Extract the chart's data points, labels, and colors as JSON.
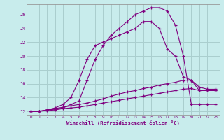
{
  "background_color": "#c8ecec",
  "grid_color": "#aacece",
  "line_color": "#800080",
  "xlim": [
    -0.5,
    23.5
  ],
  "ylim": [
    11.5,
    27.5
  ],
  "xlabel": "Windchill (Refroidissement éolien,°C)",
  "yticks": [
    12,
    14,
    16,
    18,
    20,
    22,
    24,
    26
  ],
  "xticks": [
    0,
    1,
    2,
    3,
    4,
    5,
    6,
    7,
    8,
    9,
    10,
    11,
    12,
    13,
    14,
    15,
    16,
    17,
    18,
    19,
    20,
    21,
    22,
    23
  ],
  "curve_top_x": [
    0,
    1,
    2,
    3,
    4,
    5,
    6,
    7,
    8,
    9,
    10,
    11,
    12,
    13,
    14,
    15,
    16,
    17,
    18,
    19,
    20,
    21,
    22,
    23
  ],
  "curve_top_y": [
    12.0,
    12.0,
    12.2,
    12.3,
    12.5,
    13.0,
    13.5,
    16.5,
    19.5,
    21.5,
    23.0,
    24.0,
    25.0,
    26.0,
    26.5,
    27.0,
    27.0,
    26.5,
    24.5,
    20.0,
    13.0,
    13.0,
    13.0,
    13.0
  ],
  "curve_mid_x": [
    0,
    1,
    2,
    3,
    4,
    5,
    6,
    7,
    8,
    9,
    10,
    11,
    12,
    13,
    14,
    15,
    16,
    17,
    18,
    19,
    20,
    21,
    22,
    23
  ],
  "curve_mid_y": [
    12.0,
    12.0,
    12.2,
    12.5,
    13.0,
    14.0,
    16.5,
    19.5,
    21.5,
    22.0,
    22.5,
    23.0,
    23.5,
    24.0,
    25.0,
    25.0,
    24.0,
    21.0,
    20.0,
    17.0,
    16.5,
    15.0,
    15.0,
    15.0
  ],
  "curve_bot1_x": [
    0,
    1,
    2,
    3,
    4,
    5,
    6,
    7,
    8,
    9,
    10,
    11,
    12,
    13,
    14,
    15,
    16,
    17,
    18,
    19,
    20,
    21,
    22,
    23
  ],
  "curve_bot1_y": [
    12.0,
    12.0,
    12.2,
    12.4,
    12.6,
    12.8,
    13.0,
    13.2,
    13.5,
    13.8,
    14.2,
    14.5,
    14.8,
    15.0,
    15.3,
    15.5,
    15.8,
    16.0,
    16.2,
    16.5,
    16.5,
    15.5,
    15.2,
    15.2
  ],
  "curve_bot2_x": [
    0,
    1,
    2,
    3,
    4,
    5,
    6,
    7,
    8,
    9,
    10,
    11,
    12,
    13,
    14,
    15,
    16,
    17,
    18,
    19,
    20,
    21,
    22,
    23
  ],
  "curve_bot2_y": [
    12.0,
    12.0,
    12.1,
    12.2,
    12.4,
    12.5,
    12.6,
    12.8,
    13.0,
    13.2,
    13.4,
    13.6,
    13.8,
    14.0,
    14.2,
    14.4,
    14.6,
    14.8,
    15.0,
    15.2,
    15.3,
    15.0,
    15.0,
    15.0
  ]
}
